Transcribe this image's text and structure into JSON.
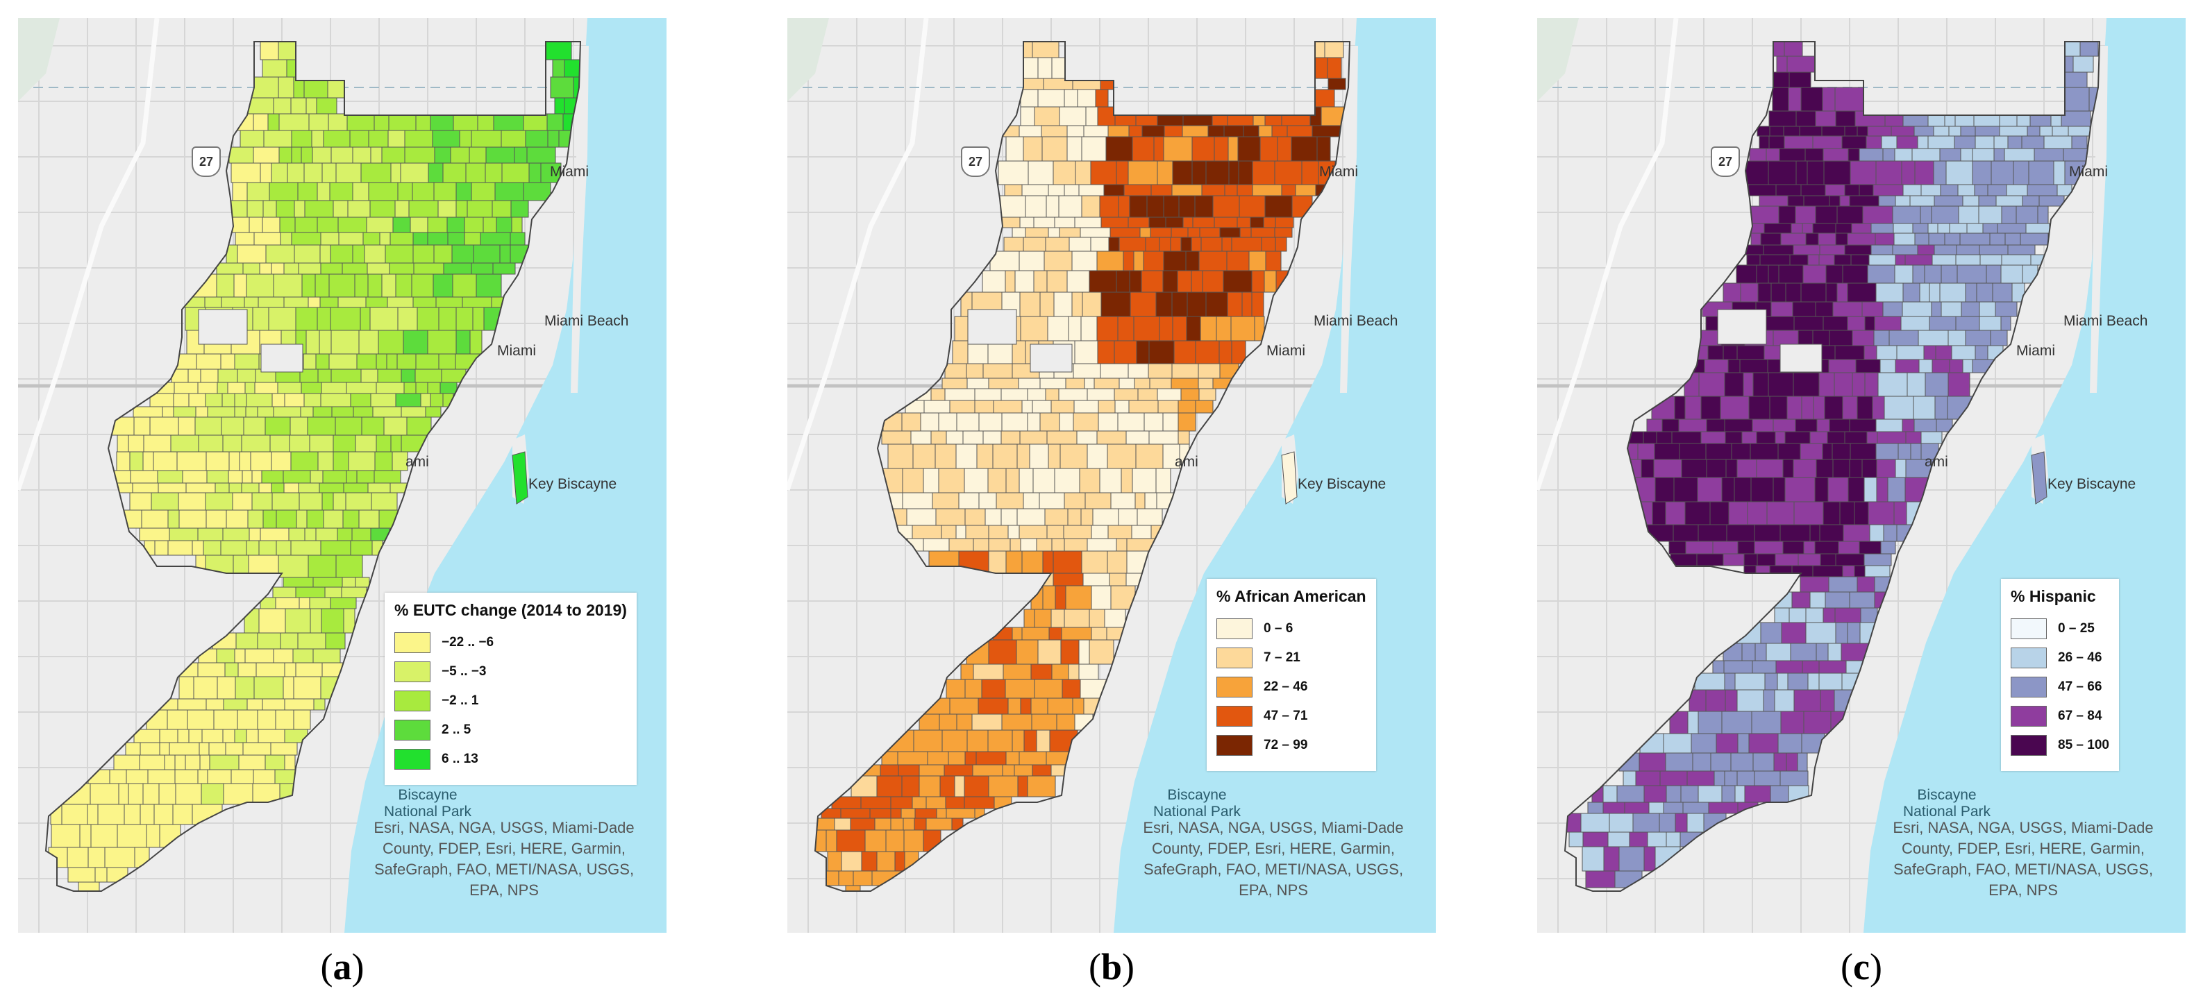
{
  "colors": {
    "water": "#b0e6f5",
    "land": "#ededed",
    "road": "#ffffff"
  },
  "panels": [
    {
      "id": "a",
      "caption_letter": "a",
      "legend": {
        "title": "% EUTC change (2014 to 2019)",
        "items": [
          {
            "label": "−22 .. −6",
            "color": "#fbf58a"
          },
          {
            "label": "−5 .. −3",
            "color": "#d8f268"
          },
          {
            "label": "−2 .. 1",
            "color": "#a8ea3e"
          },
          {
            "label": "2 .. 5",
            "color": "#5ddc3c"
          },
          {
            "label": "6 .. 13",
            "color": "#22e02e"
          }
        ]
      },
      "tract_colors": [
        "#fbf58a",
        "#d8f268",
        "#a8ea3e",
        "#5ddc3c",
        "#22e02e"
      ]
    },
    {
      "id": "b",
      "caption_letter": "b",
      "legend": {
        "title": "% African American",
        "items": [
          {
            "label": "0 – 6",
            "color": "#fdf5dc"
          },
          {
            "label": "7 – 21",
            "color": "#fdd99a"
          },
          {
            "label": "22 – 46",
            "color": "#f7a33a"
          },
          {
            "label": "47 – 71",
            "color": "#e2570f"
          },
          {
            "label": "72 – 99",
            "color": "#7b2602"
          }
        ]
      },
      "tract_colors": [
        "#fdf5dc",
        "#fdd99a",
        "#f7a33a",
        "#e2570f",
        "#7b2602"
      ]
    },
    {
      "id": "c",
      "caption_letter": "c",
      "legend": {
        "title": "% Hispanic",
        "items": [
          {
            "label": "0 – 25",
            "color": "#f2f8fc"
          },
          {
            "label": "26 – 46",
            "color": "#b8d3e8"
          },
          {
            "label": "47 – 66",
            "color": "#8c96c6"
          },
          {
            "label": "67 – 84",
            "color": "#8f3d9e"
          },
          {
            "label": "85 – 100",
            "color": "#4a0650"
          }
        ]
      },
      "tract_colors": [
        "#f2f8fc",
        "#b8d3e8",
        "#8c96c6",
        "#8f3d9e",
        "#4a0650"
      ]
    }
  ],
  "places": {
    "miami_top": "Miami",
    "miami_beach": "Miami Beach",
    "miami_mid": "Miami",
    "miami_low": "ami",
    "key_biscayne": "Key Biscayne",
    "route": "27"
  },
  "park": {
    "line1": "Biscayne",
    "line2": "National Park"
  },
  "attribution": "Esri, NASA, NGA, USGS, Miami-Dade County, FDEP, Esri, HERE, Garmin, SafeGraph, FAO, METI/NASA, USGS, EPA, NPS",
  "caption_paren_open": "(",
  "caption_paren_close": ")"
}
